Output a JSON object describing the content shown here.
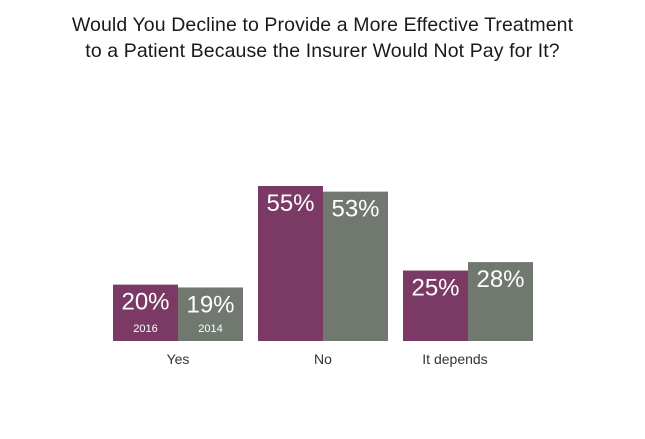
{
  "chart_data": {
    "type": "bar",
    "title_lines": [
      "Would You Decline to Provide a More Effective Treatment",
      "to a Patient Because the Insurer Would Not Pay for It?"
    ],
    "categories": [
      "Yes",
      "No",
      "It depends"
    ],
    "series": [
      {
        "name": "2016",
        "values": [
          20,
          55,
          25
        ],
        "labels": [
          "20%",
          "55%",
          "25%"
        ],
        "color": "#7b3a65"
      },
      {
        "name": "2014",
        "values": [
          19,
          53,
          28
        ],
        "labels": [
          "19%",
          "53%",
          "28%"
        ],
        "color": "#707870"
      }
    ],
    "ylim": [
      0,
      55
    ],
    "grid": false,
    "legend": "series names printed inside the Yes bars"
  }
}
